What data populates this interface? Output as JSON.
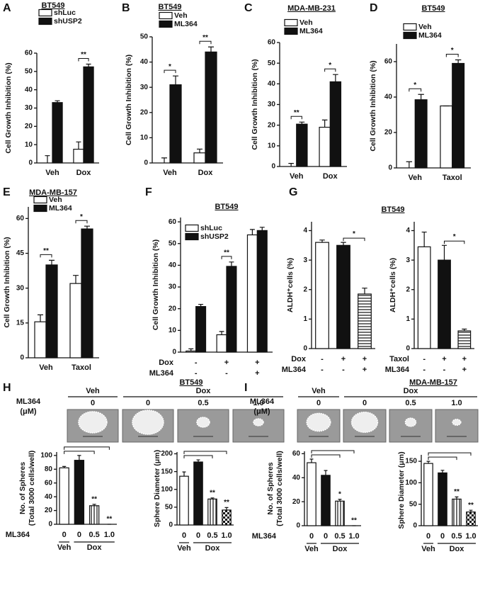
{
  "panel_labels": [
    "A",
    "B",
    "C",
    "D",
    "E",
    "F",
    "G",
    "H",
    "I"
  ],
  "sphere_images": [
    {
      "title": "BT549",
      "label": [
        "ML364",
        "(μM)"
      ],
      "groups": [
        {
          "label": "Veh",
          "images": [
            0
          ]
        },
        {
          "label": "Dox",
          "images": [
            1,
            2,
            3
          ]
        }
      ],
      "doses": [
        "0",
        "0",
        "0.5",
        "1.0"
      ]
    },
    {
      "title": "MDA-MB-157",
      "label": [
        "ML364",
        "(μM)"
      ],
      "groups": [
        {
          "label": "Veh",
          "images": [
            0
          ]
        },
        {
          "label": "Dox",
          "images": [
            1,
            2,
            3
          ]
        }
      ],
      "doses": [
        "0",
        "0",
        "0.5",
        "1.0"
      ]
    }
  ],
  "chart_data": [
    {
      "type": "bar",
      "title": "BT549",
      "ylabel": "Cell Growth Inhibition (%)",
      "categories": [
        "Veh",
        "Dox"
      ],
      "series": [
        {
          "name": "shLuc",
          "color": "#ffffff",
          "values": [
            0,
            7.5
          ],
          "errors": [
            4,
            4
          ]
        },
        {
          "name": "shUSP2",
          "color": "#111111",
          "values": [
            33,
            52.5
          ],
          "errors": [
            1,
            1.5
          ]
        }
      ],
      "significance": [
        null,
        "**"
      ],
      "ylim": [
        0,
        60
      ],
      "yticks": [
        0,
        10,
        20,
        30,
        40,
        50,
        60
      ]
    },
    {
      "type": "bar",
      "title": "BT549",
      "ylabel": "Cell Growth Inhibition (%)",
      "categories": [
        "Veh",
        "Dox"
      ],
      "series": [
        {
          "name": "Veh",
          "color": "#ffffff",
          "values": [
            0,
            4
          ],
          "errors": [
            2,
            1.5
          ]
        },
        {
          "name": "ML364",
          "color": "#111111",
          "values": [
            31,
            44
          ],
          "errors": [
            3.5,
            2
          ]
        }
      ],
      "significance": [
        "*",
        "**"
      ],
      "ylim": [
        0,
        50
      ],
      "yticks": [
        0,
        10,
        20,
        30,
        40,
        50
      ]
    },
    {
      "type": "bar",
      "title": "MDA-MB-231",
      "ylabel": "Cell Growth Inhibition (%)",
      "categories": [
        "Veh",
        "Dox"
      ],
      "series": [
        {
          "name": "Veh",
          "color": "#ffffff",
          "values": [
            0,
            19
          ],
          "errors": [
            1.5,
            3.5
          ]
        },
        {
          "name": "ML364",
          "color": "#111111",
          "values": [
            20.5,
            41
          ],
          "errors": [
            1,
            3.5
          ]
        }
      ],
      "significance": [
        "**",
        "*"
      ],
      "ylim": [
        0,
        60
      ],
      "yticks": [
        0,
        10,
        20,
        30,
        40,
        50,
        60
      ]
    },
    {
      "type": "bar",
      "title": "BT549",
      "ylabel": "Cell Growth Inhibition (%)",
      "categories": [
        "Veh",
        "Taxol"
      ],
      "series": [
        {
          "name": "Veh",
          "color": "#ffffff",
          "values": [
            0,
            35
          ],
          "errors": [
            3.5,
            0
          ]
        },
        {
          "name": "ML364",
          "color": "#111111",
          "values": [
            38.5,
            59
          ],
          "errors": [
            3,
            2
          ]
        }
      ],
      "significance": [
        "*",
        "*"
      ],
      "ylim": [
        0,
        70
      ],
      "yticks": [
        0,
        20,
        40,
        60
      ]
    },
    {
      "type": "bar",
      "title": "MDA-MB-157",
      "ylabel": "Cell Growth Inhibition (%)",
      "categories": [
        "Veh",
        "Taxol"
      ],
      "series": [
        {
          "name": "Veh",
          "color": "#ffffff",
          "values": [
            15.5,
            32
          ],
          "errors": [
            3,
            3.5
          ]
        },
        {
          "name": "ML364",
          "color": "#111111",
          "values": [
            40,
            55.5
          ],
          "errors": [
            2,
            1.2
          ]
        }
      ],
      "significance": [
        "**",
        "*"
      ],
      "ylim": [
        0,
        65
      ],
      "yticks": [
        0,
        15,
        30,
        45,
        60
      ]
    },
    {
      "type": "bar",
      "title": "BT549",
      "ylabel": "Cell Growth Inhibition (%)",
      "series": [
        {
          "name": "shLuc",
          "color": "#ffffff",
          "values": [
            0.5,
            8,
            54
          ],
          "errors": [
            1,
            1.5,
            2.5
          ]
        },
        {
          "name": "shUSP2",
          "color": "#111111",
          "values": [
            21,
            39.5,
            56
          ],
          "errors": [
            1,
            2,
            1.5
          ]
        }
      ],
      "significance": [
        null,
        "**",
        null
      ],
      "conditions": [
        {
          "label": "Dox",
          "values": [
            "-",
            "+",
            "+"
          ]
        },
        {
          "label": "ML364",
          "values": [
            "-",
            "-",
            "+"
          ]
        }
      ],
      "ylim": [
        0,
        62
      ],
      "yticks": [
        0,
        10,
        20,
        30,
        40,
        50,
        60
      ]
    },
    {
      "type": "bar",
      "title": "BT549",
      "ylabel": "ALDH⁺cells (%)",
      "values": [
        3.6,
        3.5,
        1.85
      ],
      "errors": [
        0.08,
        0.1,
        0.2
      ],
      "fills": [
        "#ffffff",
        "#111111",
        "hstripe"
      ],
      "brackets": [
        {
          "from": 1,
          "to": 2,
          "label": "*"
        }
      ],
      "conditions": [
        {
          "label": "Dox",
          "values": [
            "-",
            "+",
            "+"
          ]
        },
        {
          "label": "ML364",
          "values": [
            "-",
            "-",
            "+"
          ]
        }
      ],
      "ylim": [
        0,
        4.3
      ],
      "yticks": [
        0,
        1,
        2,
        3,
        4
      ]
    },
    {
      "type": "bar",
      "ylabel": "ALDH⁺cells (%)",
      "values": [
        3.45,
        3.0,
        0.6
      ],
      "errors": [
        0.5,
        0.5,
        0.06
      ],
      "fills": [
        "#ffffff",
        "#111111",
        "hstripe"
      ],
      "brackets": [
        {
          "from": 1,
          "to": 2,
          "label": "*"
        }
      ],
      "conditions": [
        {
          "label": "Taxol",
          "values": [
            "-",
            "+",
            "+"
          ]
        },
        {
          "label": "ML364",
          "values": [
            "-",
            "-",
            "+"
          ]
        }
      ],
      "ylim": [
        0,
        4.3
      ],
      "yticks": [
        0,
        1,
        2,
        3,
        4
      ]
    },
    {
      "type": "bar",
      "ylabel": [
        "No. of Spheres",
        "(Total 3000 cells/well)"
      ],
      "values": [
        82,
        93,
        27,
        0
      ],
      "errors": [
        2,
        7,
        2,
        0
      ],
      "fills": [
        "#ffffff",
        "#111111",
        "vstripe",
        "check"
      ],
      "significance": [
        null,
        null,
        "**",
        "**"
      ],
      "brackets": [
        {
          "from": 0,
          "to": 2
        },
        {
          "from": 0,
          "to": 3
        }
      ],
      "conditions": [
        {
          "label": "ML364",
          "values": [
            "0",
            "0",
            "0.5",
            "1.0"
          ]
        }
      ],
      "groups": [
        {
          "label": "Veh",
          "bars": [
            0
          ]
        },
        {
          "label": "Dox",
          "bars": [
            1,
            2,
            3
          ]
        }
      ],
      "ylim": [
        0,
        105
      ],
      "yticks": [
        0,
        20,
        40,
        60,
        80,
        100
      ]
    },
    {
      "type": "bar",
      "ylabel": "Sphere Diameter (μm)",
      "values": [
        137,
        177,
        73,
        42
      ],
      "errors": [
        12,
        6,
        3,
        7
      ],
      "fills": [
        "#ffffff",
        "#111111",
        "vstripe",
        "check"
      ],
      "significance": [
        null,
        null,
        "**",
        "**"
      ],
      "brackets": [
        {
          "from": 0,
          "to": 2
        },
        {
          "from": 0,
          "to": 3
        }
      ],
      "conditions": [
        {
          "values": [
            "0",
            "0",
            "0.5",
            "1.0"
          ]
        }
      ],
      "groups": [
        {
          "label": "Veh",
          "bars": [
            0
          ]
        },
        {
          "label": "Dox",
          "bars": [
            1,
            2,
            3
          ]
        }
      ],
      "ylim": [
        0,
        205
      ],
      "yticks": [
        0,
        50,
        100,
        150,
        200
      ]
    },
    {
      "type": "bar",
      "ylabel": [
        "No. of Spheres",
        "(Total 3000 cells/well)"
      ],
      "values": [
        52.5,
        42,
        20.5,
        0
      ],
      "errors": [
        3,
        4,
        1.5,
        0
      ],
      "fills": [
        "#ffffff",
        "#111111",
        "vstripe",
        "check"
      ],
      "significance": [
        null,
        null,
        "*",
        "**"
      ],
      "brackets": [
        {
          "from": 0,
          "to": 2
        },
        {
          "from": 0,
          "to": 3
        }
      ],
      "conditions": [
        {
          "label": "ML364",
          "values": [
            "0",
            "0",
            "0.5",
            "1.0"
          ]
        }
      ],
      "groups": [
        {
          "label": "Veh",
          "bars": [
            0
          ]
        },
        {
          "label": "Dox",
          "bars": [
            1,
            2,
            3
          ]
        }
      ],
      "ylim": [
        0,
        62
      ],
      "yticks": [
        0,
        20,
        40,
        60
      ]
    },
    {
      "type": "bar",
      "ylabel": "Sphere Diameter (μm)",
      "values": [
        145,
        123,
        62,
        32
      ],
      "errors": [
        5,
        6,
        5,
        4
      ],
      "fills": [
        "#ffffff",
        "#111111",
        "vstripe",
        "check"
      ],
      "significance": [
        null,
        null,
        "**",
        "**"
      ],
      "brackets": [
        {
          "from": 0,
          "to": 2
        },
        {
          "from": 0,
          "to": 3
        }
      ],
      "conditions": [
        {
          "values": [
            "0",
            "0",
            "0.5",
            "1.0"
          ]
        }
      ],
      "groups": [
        {
          "label": "Veh",
          "bars": [
            0
          ]
        },
        {
          "label": "Dox",
          "bars": [
            1,
            2,
            3
          ]
        }
      ],
      "ylim": [
        0,
        165
      ],
      "yticks": [
        0,
        50,
        100,
        150
      ]
    }
  ]
}
